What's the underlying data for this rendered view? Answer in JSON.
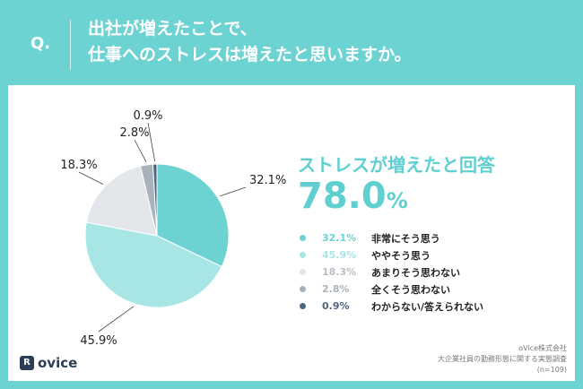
{
  "header": {
    "q_mark": "Q.",
    "question_line1": "出社が増えたことで、",
    "question_line2": "仕事へのストレスは増えたと思いますか。"
  },
  "summary": {
    "headline": "ストレスが増えたと回答",
    "value_number": "78.0",
    "value_unit": "%"
  },
  "chart_data": {
    "type": "pie",
    "title": "出社が増えたことで、仕事へのストレスは増えたと思いますか。",
    "slices": [
      {
        "label": "非常にそう思う",
        "value": 32.1,
        "display": "32.1%",
        "color": "#6dd3d2"
      },
      {
        "label": "ややそう思う",
        "value": 45.9,
        "display": "45.9%",
        "color": "#a8e6e6"
      },
      {
        "label": "あまりそう思わない",
        "value": 18.3,
        "display": "18.3%",
        "color": "#e3e6ea"
      },
      {
        "label": "全くそう思わない",
        "value": 2.8,
        "display": "2.8%",
        "color": "#a9b2bb"
      },
      {
        "label": "わからない/答えられない",
        "value": 0.9,
        "display": "0.9%",
        "color": "#4b6582"
      }
    ]
  },
  "footer": {
    "company": "oVice株式会社",
    "survey": "大企業社員の勤務形態に関する実態調査",
    "sample": "(n=109)"
  },
  "logo": {
    "icon_char": "R",
    "text": "ovice"
  }
}
